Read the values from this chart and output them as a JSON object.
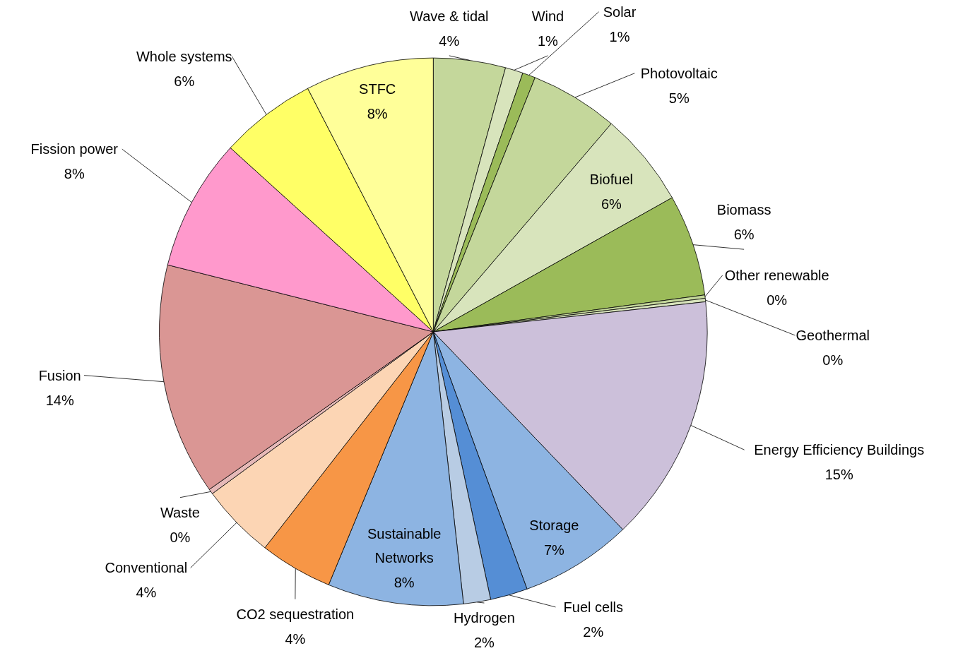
{
  "chart_data": {
    "type": "pie",
    "categories": [
      "Wave & tidal",
      "Wind",
      "Solar",
      "Photovoltaic",
      "Biofuel",
      "Biomass",
      "Other renewable",
      "Geothermal",
      "Energy Efficiency Buildings",
      "Storage",
      "Fuel cells",
      "Hydrogen",
      "Sustainable Networks",
      "CO2 sequestration",
      "Conventional",
      "Waste",
      "Fusion",
      "Fission power",
      "Whole systems",
      "STFC"
    ],
    "values": [
      4.25,
      1.05,
      0.76,
      5.2,
      5.6,
      6.0,
      0.2,
      0.2,
      14.6,
      6.6,
      2.2,
      1.6,
      8.0,
      4.3,
      4.4,
      0.3,
      13.7,
      7.8,
      5.7,
      7.58
    ],
    "colors": [
      "#c4d79b",
      "#d8e4bc",
      "#9bbb59",
      "#c4d79b",
      "#d8e4bc",
      "#9bbb59",
      "#c4d79b",
      "#d8e4bc",
      "#ccc0da",
      "#8db4e2",
      "#558ed5",
      "#b8cce4",
      "#8db4e2",
      "#f79646",
      "#fcd5b4",
      "#e6b9b8",
      "#da9694",
      "#ff99cc",
      "#ffff66",
      "#ffff99"
    ],
    "value_labels": [
      "4%",
      "1%",
      "1%",
      "5%",
      "6%",
      "6%",
      "0%",
      "0%",
      "15%",
      "7%",
      "2%",
      "2%",
      "8%",
      "4%",
      "4%",
      "0%",
      "14%",
      "8%",
      "6%",
      "8%"
    ]
  }
}
